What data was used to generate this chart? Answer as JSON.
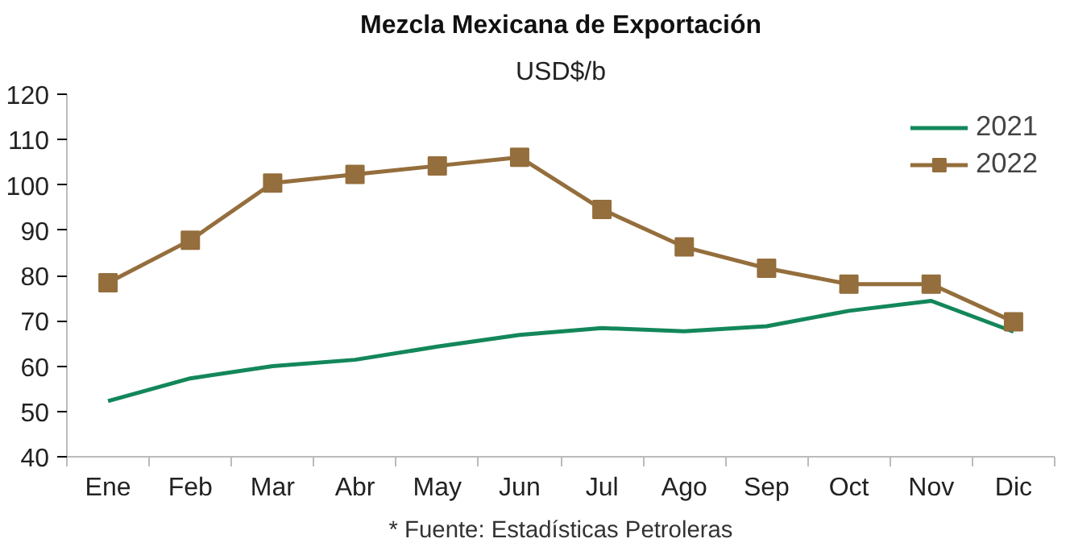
{
  "chart_data": {
    "type": "line",
    "title": "Mezcla Mexicana de Exportación",
    "subtitle": "USD$/b",
    "categories": [
      "Ene",
      "Feb",
      "Mar",
      "Abr",
      "May",
      "Jun",
      "Jul",
      "Ago",
      "Sep",
      "Oct",
      "Nov",
      "Dic"
    ],
    "series": [
      {
        "name": "2021",
        "color": "#13875a",
        "marker": "none",
        "values": [
          52.3,
          57.3,
          60.0,
          61.4,
          64.3,
          66.9,
          68.4,
          67.7,
          68.8,
          72.2,
          74.4,
          67.6
        ]
      },
      {
        "name": "2022",
        "color": "#946e3c",
        "marker": "square",
        "values": [
          78.4,
          87.8,
          100.4,
          102.3,
          104.2,
          106.1,
          94.6,
          86.3,
          81.6,
          78.1,
          78.1,
          69.8
        ]
      }
    ],
    "ylim": [
      40,
      120
    ],
    "yticks": [
      40,
      50,
      60,
      70,
      80,
      90,
      100,
      110,
      120
    ],
    "grid": false,
    "legend": "top right",
    "line_style": "solid",
    "annotations": [
      "* Fuente: Estadísticas Petroleras"
    ]
  }
}
